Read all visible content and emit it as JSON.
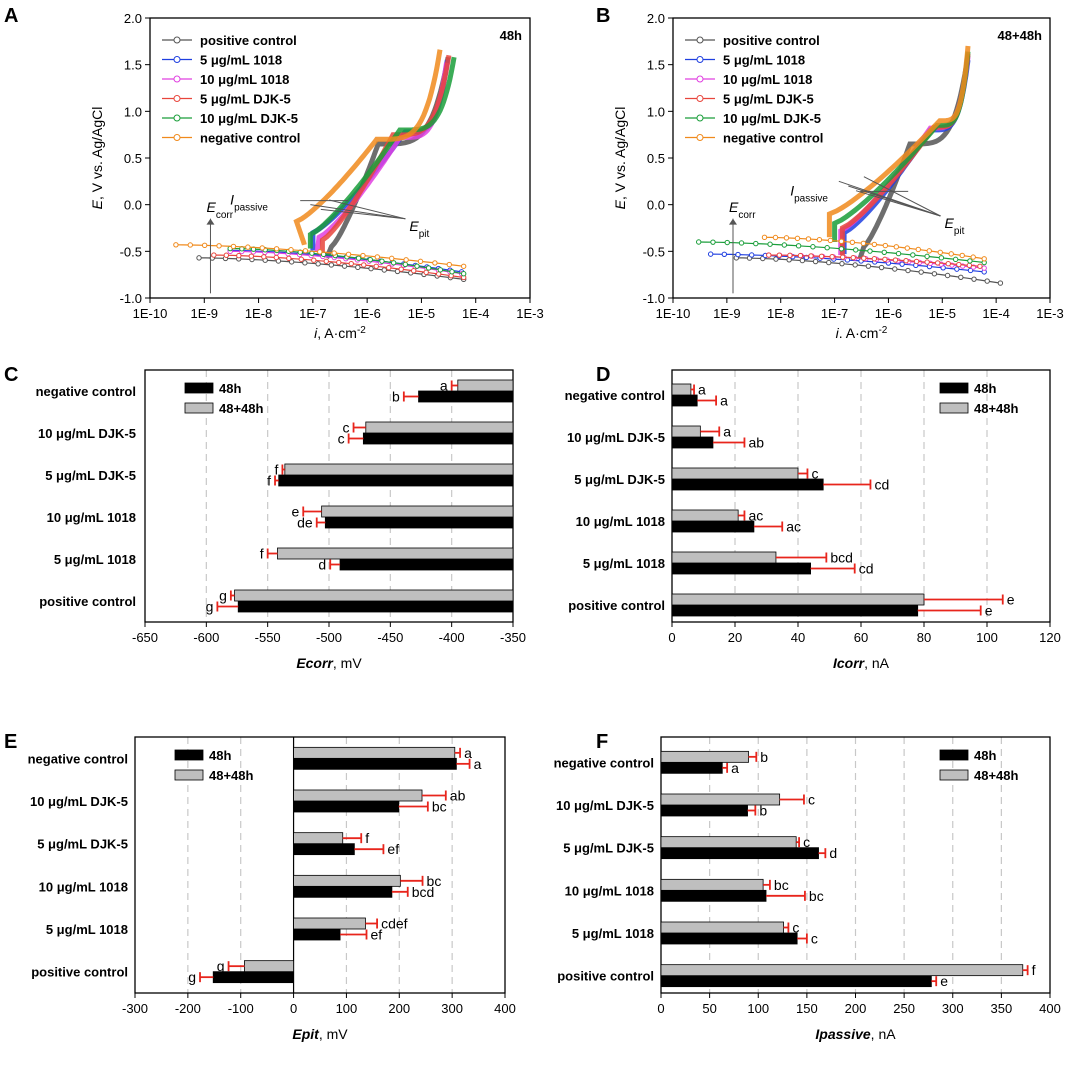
{
  "chart_data": [
    {
      "id": "A",
      "type": "line",
      "panel_label": "A",
      "corner_label": "48h",
      "xscale": "log",
      "xlim": [
        1e-10,
        0.001
      ],
      "ylim": [
        -1.0,
        2.0
      ],
      "xticks": [
        "1E-10",
        "1E-9",
        "1E-8",
        "1E-7",
        "1E-6",
        "1E-5",
        "1E-4",
        "1E-3"
      ],
      "yticks": [
        "-1.0",
        "-0.5",
        "0.0",
        "0.5",
        "1.0",
        "1.5",
        "2.0"
      ],
      "xlabel_italic": "i",
      "xlabel_rest": ", A·cm",
      "xlabel_sup": "-2",
      "ylabel_italic": "E",
      "ylabel_rest": ", V vs. Ag/AgCl",
      "annotations": {
        "ecorr_main": "E",
        "ecorr_sub": "corr",
        "ipass_main": "I",
        "ipass_sub": "passive",
        "epit_main": "E",
        "epit_sub": "pit"
      },
      "legend": [
        "positive control",
        "5 μg/mL 1018",
        "10 μg/mL 1018",
        "5 μg/mL DJK-5",
        "10 μg/mL DJK-5",
        "negative control"
      ],
      "series": [
        {
          "name": "positive control",
          "color": "#555555",
          "marker": "circle",
          "ecorr": -0.57,
          "icorr": 1.8e-07,
          "cathode_end": [
            6e-05,
            -0.8
          ],
          "anode_start": -0.57,
          "knee": [
            2.2e-07,
            -0.45
          ],
          "break": [
            1.6e-06,
            0.65
          ],
          "top": [
            3.1e-05,
            1.58
          ],
          "ileft": 8e-10
        },
        {
          "name": "5 μg/mL 1018",
          "color": "#1f3fe0",
          "marker": "triangle-up",
          "ecorr": -0.49,
          "icorr": 1e-07,
          "cathode_end": [
            5.5e-05,
            -0.72
          ],
          "anode_start": -0.49,
          "knee": [
            1e-07,
            -0.3
          ],
          "break": [
            5e-06,
            0.78
          ],
          "top": [
            3e-05,
            1.55
          ],
          "ileft": 3e-09
        },
        {
          "name": "10 μg/mL 1018",
          "color": "#e040e0",
          "marker": "triangle-down",
          "ecorr": -0.5,
          "icorr": 1.2e-07,
          "cathode_end": [
            5.5e-05,
            -0.74
          ],
          "anode_start": -0.5,
          "knee": [
            1.3e-07,
            -0.35
          ],
          "break": [
            4e-06,
            0.72
          ],
          "top": [
            2.9e-05,
            1.52
          ],
          "ileft": 3e-09
        },
        {
          "name": "5 μg/mL DJK-5",
          "color": "#e8453c",
          "marker": "circle",
          "ecorr": -0.54,
          "icorr": 1.5e-07,
          "cathode_end": [
            6e-05,
            -0.78
          ],
          "anode_start": -0.54,
          "knee": [
            1.5e-07,
            -0.38
          ],
          "break": [
            3e-06,
            0.75
          ],
          "top": [
            3.2e-05,
            1.6
          ],
          "ileft": 1.5e-09
        },
        {
          "name": "10 μg/mL DJK-5",
          "color": "#1a9e3a",
          "marker": "diamond",
          "ecorr": -0.47,
          "icorr": 9e-08,
          "cathode_end": [
            6e-05,
            -0.74
          ],
          "anode_start": -0.47,
          "knee": [
            9e-08,
            -0.32
          ],
          "break": [
            4e-06,
            0.8
          ],
          "top": [
            4e-05,
            1.58
          ],
          "ileft": 3e-09
        },
        {
          "name": "negative control",
          "color": "#f08a1c",
          "marker": "triangle-left",
          "ecorr": -0.43,
          "icorr": 7e-08,
          "cathode_end": [
            6e-05,
            -0.66
          ],
          "anode_start": -0.43,
          "knee": [
            5e-08,
            -0.18
          ],
          "break": [
            1.5e-06,
            0.7
          ],
          "top": [
            2.2e-05,
            1.66
          ],
          "ileft": 3e-10
        }
      ]
    },
    {
      "id": "B",
      "type": "line",
      "panel_label": "B",
      "corner_label": "48+48h",
      "xscale": "log",
      "xlim": [
        1e-10,
        0.001
      ],
      "ylim": [
        -1.0,
        2.0
      ],
      "xticks": [
        "1E-10",
        "1E-9",
        "1E-8",
        "1E-7",
        "1E-6",
        "1E-5",
        "1E-4",
        "1E-3"
      ],
      "yticks": [
        "-1.0",
        "-0.5",
        "0.0",
        "0.5",
        "1.0",
        "1.5",
        "2.0"
      ],
      "xlabel_italic": "i",
      "xlabel_rest": ". A·cm",
      "xlabel_sup": "-2",
      "ylabel_italic": "E",
      "ylabel_rest": ", V vs. Ag/AgCl",
      "annotations": {
        "ecorr_main": "E",
        "ecorr_sub": "corr",
        "ipass_main": "I",
        "ipass_sub": "passive",
        "epit_main": "E",
        "epit_sub": "pit"
      },
      "legend": [
        "positive control",
        "5 μg/mL 1018",
        "10 μg/mL 1018",
        "5 μg/mL DJK-5",
        "10 μg/mL DJK-5",
        "negative control"
      ],
      "series": [
        {
          "name": "positive control",
          "color": "#555555",
          "marker": "circle",
          "ecorr": -0.57,
          "icorr": 3e-07,
          "cathode_end": [
            0.00012,
            -0.84
          ],
          "anode_start": -0.57,
          "knee": [
            3.5e-07,
            -0.45
          ],
          "break": [
            2.5e-06,
            0.65
          ],
          "top": [
            3e-05,
            1.6
          ],
          "ileft": 1.5e-09
        },
        {
          "name": "5 μg/mL 1018",
          "color": "#1f3fe0",
          "marker": "triangle-up",
          "ecorr": -0.53,
          "icorr": 1.5e-07,
          "cathode_end": [
            6e-05,
            -0.72
          ],
          "anode_start": -0.53,
          "knee": [
            1.5e-07,
            -0.3
          ],
          "break": [
            6e-06,
            0.8
          ],
          "top": [
            3e-05,
            1.55
          ],
          "ileft": 5e-10
        },
        {
          "name": "10 μg/mL 1018",
          "color": "#e040e0",
          "marker": "triangle-down",
          "ecorr": -0.54,
          "icorr": 1.3e-07,
          "cathode_end": [
            6e-05,
            -0.68
          ],
          "anode_start": -0.54,
          "knee": [
            1.3e-07,
            -0.28
          ],
          "break": [
            6e-06,
            0.82
          ],
          "top": [
            3e-05,
            1.58
          ],
          "ileft": 6e-09
        },
        {
          "name": "5 μg/mL DJK-5",
          "color": "#e8453c",
          "marker": "circle",
          "ecorr": -0.54,
          "icorr": 1.4e-07,
          "cathode_end": [
            5e-05,
            -0.66
          ],
          "anode_start": -0.54,
          "knee": [
            1.4e-07,
            -0.25
          ],
          "break": [
            7e-06,
            0.83
          ],
          "top": [
            3e-05,
            1.62
          ],
          "ileft": 6e-09
        },
        {
          "name": "10 μg/mL DJK-5",
          "color": "#1a9e3a",
          "marker": "diamond",
          "ecorr": -0.4,
          "icorr": 1e-07,
          "cathode_end": [
            6e-05,
            -0.62
          ],
          "anode_start": -0.4,
          "knee": [
            1e-07,
            -0.2
          ],
          "break": [
            8e-06,
            0.85
          ],
          "top": [
            3e-05,
            1.64
          ],
          "ileft": 3e-10
        },
        {
          "name": "negative control",
          "color": "#f08a1c",
          "marker": "triangle-left",
          "ecorr": -0.35,
          "icorr": 8e-08,
          "cathode_end": [
            6e-05,
            -0.58
          ],
          "anode_start": -0.35,
          "knee": [
            8e-08,
            -0.1
          ],
          "break": [
            9e-06,
            0.9
          ],
          "top": [
            3e-05,
            1.7
          ],
          "ileft": 5e-09
        }
      ]
    },
    {
      "id": "C",
      "type": "bar",
      "orientation": "horizontal",
      "panel_label": "C",
      "categories": [
        "negative control",
        "10 μg/mL DJK-5",
        "5 μg/mL DJK-5",
        "10 μg/mL 1018",
        "5 μg/mL 1018",
        "positive control"
      ],
      "xlim": [
        -650,
        -350
      ],
      "xticks": [
        -650,
        -600,
        -550,
        -500,
        -450,
        -400,
        -350
      ],
      "baseline": -350,
      "xlabel_italic": "Ecorr",
      "xlabel_rest": ", mV",
      "legend": [
        "48h",
        "48+48h"
      ],
      "legend_pos": "top-left",
      "series": [
        {
          "name": "48h",
          "color": "#000000",
          "values": [
            -427,
            -472,
            -541,
            -503,
            -491,
            -574
          ],
          "errors": [
            12,
            12,
            3,
            7,
            8,
            17
          ],
          "letters": [
            "b",
            "c",
            "f",
            "de",
            "d",
            "g"
          ]
        },
        {
          "name": "48+48h",
          "color": "#bfbfbf",
          "values": [
            -395,
            -470,
            -536,
            -506,
            -542,
            -577
          ],
          "errors": [
            5,
            10,
            2,
            15,
            8,
            3
          ],
          "letters": [
            "a",
            "c",
            "f",
            "e",
            "f",
            "g"
          ]
        }
      ]
    },
    {
      "id": "D",
      "type": "bar",
      "orientation": "horizontal",
      "panel_label": "D",
      "categories": [
        "negative control",
        "10 μg/mL DJK-5",
        "5 μg/mL DJK-5",
        "10 μg/mL 1018",
        "5 μg/mL 1018",
        "positive control"
      ],
      "xlim": [
        0,
        120
      ],
      "xticks": [
        0,
        20,
        40,
        60,
        80,
        100,
        120
      ],
      "baseline": 0,
      "xlabel_italic": "Icorr",
      "xlabel_rest": ", nA",
      "legend": [
        "48h",
        "48+48h"
      ],
      "legend_pos": "top-right",
      "series": [
        {
          "name": "48h",
          "color": "#000000",
          "values": [
            8,
            13,
            48,
            26,
            44,
            78
          ],
          "errors": [
            6,
            10,
            15,
            9,
            14,
            20
          ],
          "letters": [
            "a",
            "ab",
            "cd",
            "ac",
            "cd",
            "e"
          ]
        },
        {
          "name": "48+48h",
          "color": "#bfbfbf",
          "values": [
            6,
            9,
            40,
            21,
            33,
            80
          ],
          "errors": [
            1,
            6,
            3,
            2,
            16,
            25
          ],
          "letters": [
            "a",
            "a",
            "c",
            "ac",
            "bcd",
            "e"
          ]
        }
      ]
    },
    {
      "id": "E",
      "type": "bar",
      "orientation": "horizontal",
      "panel_label": "E",
      "categories": [
        "negative control",
        "10 μg/mL DJK-5",
        "5 μg/mL DJK-5",
        "10 μg/mL 1018",
        "5 μg/mL 1018",
        "positive control"
      ],
      "xlim": [
        -300,
        400
      ],
      "xticks": [
        -300,
        -200,
        -100,
        0,
        100,
        200,
        300,
        400
      ],
      "baseline": 0,
      "xlabel_italic": "Epit",
      "xlabel_rest": ", mV",
      "legend": [
        "48h",
        "48+48h"
      ],
      "legend_pos": "top-left",
      "series": [
        {
          "name": "48h",
          "color": "#000000",
          "values": [
            308,
            199,
            115,
            186,
            88,
            -152
          ],
          "errors": [
            25,
            55,
            55,
            30,
            50,
            25
          ],
          "letters": [
            "a",
            "bc",
            "ef",
            "bcd",
            "ef",
            "g"
          ]
        },
        {
          "name": "48+48h",
          "color": "#bfbfbf",
          "values": [
            305,
            243,
            93,
            202,
            136,
            -93
          ],
          "errors": [
            10,
            45,
            35,
            42,
            22,
            30
          ],
          "letters": [
            "a",
            "ab",
            "f",
            "bc",
            "cdef",
            "g"
          ]
        }
      ]
    },
    {
      "id": "F",
      "type": "bar",
      "orientation": "horizontal",
      "panel_label": "F",
      "categories": [
        "negative control",
        "10 μg/mL DJK-5",
        "5 μg/mL DJK-5",
        "10 μg/mL 1018",
        "5 μg/mL 1018",
        "positive control"
      ],
      "xlim": [
        0,
        400
      ],
      "xticks": [
        0,
        50,
        100,
        150,
        200,
        250,
        300,
        350,
        400
      ],
      "baseline": 0,
      "xlabel_italic": "Ipassive",
      "xlabel_rest": ", nA",
      "legend": [
        "48h",
        "48+48h"
      ],
      "legend_pos": "top-right",
      "series": [
        {
          "name": "48h",
          "color": "#000000",
          "values": [
            63,
            89,
            162,
            108,
            140,
            278
          ],
          "errors": [
            5,
            8,
            7,
            40,
            10,
            5
          ],
          "letters": [
            "a",
            "b",
            "d",
            "bc",
            "c",
            "e"
          ]
        },
        {
          "name": "48+48h",
          "color": "#bfbfbf",
          "values": [
            90,
            122,
            139,
            105,
            126,
            372
          ],
          "errors": [
            8,
            25,
            3,
            7,
            5,
            5
          ],
          "letters": [
            "b",
            "c",
            "c",
            "bc",
            "c",
            "f"
          ]
        }
      ]
    }
  ]
}
